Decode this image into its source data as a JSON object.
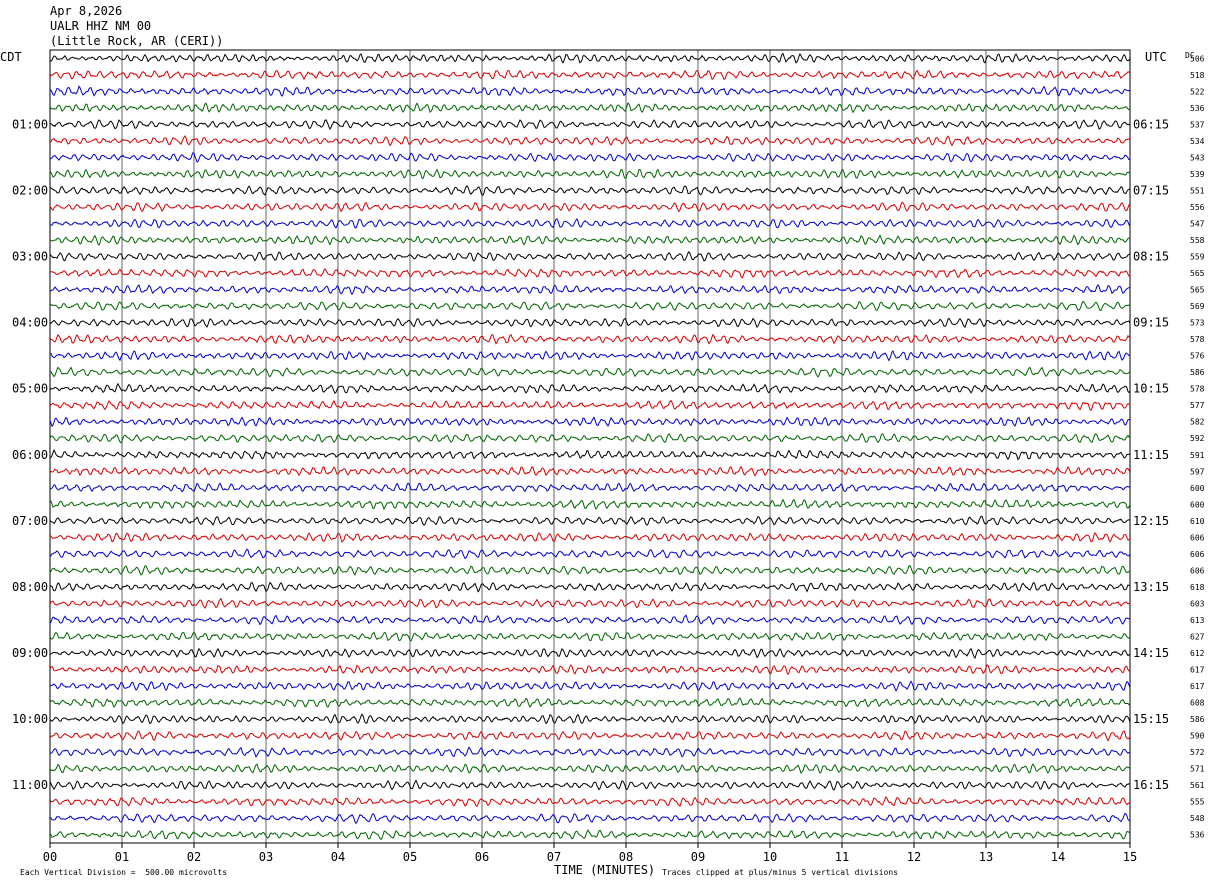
{
  "header": {
    "date": "Apr 8,2026",
    "station": "UALR HHZ NM 00",
    "location": "(Little Rock, AR (CERI))"
  },
  "left_axis_label": "CDT",
  "right_axis_label": "UTC",
  "dc_label": "DC",
  "footer": {
    "xlabel": "TIME (MINUTES)",
    "scale_note": "Each Vertical Division =  500.00 microvolts",
    "clip_note": "Traces clipped at plus/minus 5 vertical divisions"
  },
  "chart_data": {
    "type": "line",
    "title": "UALR HHZ NM 00",
    "xlabel": "TIME (MINUTES)",
    "xlim": [
      0,
      15
    ],
    "x_ticks": [
      "00",
      "01",
      "02",
      "03",
      "04",
      "05",
      "06",
      "07",
      "08",
      "09",
      "10",
      "11",
      "12",
      "13",
      "14",
      "15"
    ],
    "rows_per_hour": 4,
    "trace_colors": [
      "#000000",
      "#d40000",
      "#0000c8",
      "#006400"
    ],
    "left_time_labels": [
      "01:00",
      "02:00",
      "03:00",
      "04:00",
      "05:00",
      "06:00",
      "07:00",
      "08:00",
      "09:00",
      "10:00",
      "11:00"
    ],
    "right_time_labels": [
      "06:15",
      "07:15",
      "08:15",
      "09:15",
      "10:15",
      "11:15",
      "12:15",
      "13:15",
      "14:15",
      "15:15",
      "16:15"
    ],
    "dc_offsets": [
      "506",
      "518",
      "522",
      "536",
      "537",
      "534",
      "543",
      "539",
      "551",
      "556",
      "547",
      "558",
      "559",
      "565",
      "565",
      "569",
      "573",
      "578",
      "576",
      "586",
      "578",
      "577",
      "582",
      "592",
      "591",
      "597",
      "600",
      "600",
      "610",
      "606",
      "606",
      "606",
      "618",
      "603",
      "613",
      "627",
      "612",
      "617",
      "617",
      "608",
      "586",
      "590",
      "572",
      "571",
      "561",
      "555",
      "548",
      "536"
    ]
  }
}
